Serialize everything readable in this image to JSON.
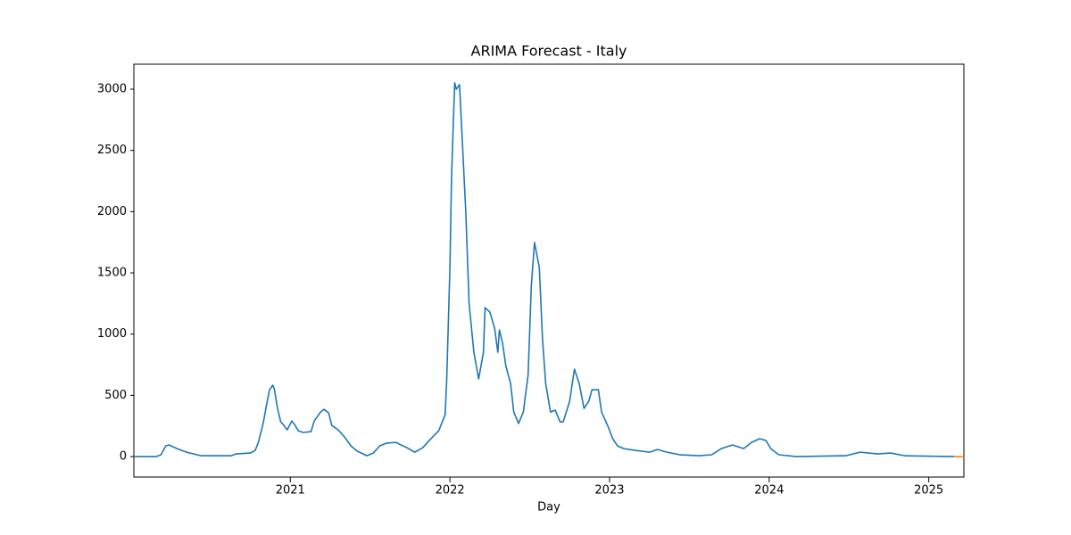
{
  "chart_data": {
    "type": "line",
    "title": "ARIMA Forecast - Italy",
    "x_label": "Day",
    "xlim": [
      2020.02,
      2025.22
    ],
    "xticks": [
      2021,
      2022,
      2023,
      2024,
      2025
    ],
    "ylim": [
      -167,
      3204
    ],
    "yticks": [
      0,
      500,
      1000,
      1500,
      2000,
      2500,
      3000
    ],
    "grid": false,
    "series": [
      {
        "color": "#1f77b4",
        "x": [
          2020.02,
          2020.16,
          2020.19,
          2020.22,
          2020.24,
          2020.29,
          2020.35,
          2020.44,
          2020.63,
          2020.66,
          2020.75,
          2020.78,
          2020.8,
          2020.83,
          2020.85,
          2020.87,
          2020.89,
          2020.9,
          2020.92,
          2020.94,
          2020.96,
          2020.98,
          2021.01,
          2021.03,
          2021.05,
          2021.08,
          2021.13,
          2021.15,
          2021.19,
          2021.21,
          2021.24,
          2021.26,
          2021.3,
          2021.34,
          2021.38,
          2021.42,
          2021.48,
          2021.52,
          2021.56,
          2021.6,
          2021.66,
          2021.73,
          2021.78,
          2021.83,
          2021.87,
          2021.93,
          2021.97,
          2021.98,
          2022.0,
          2022.01,
          2022.02,
          2022.03,
          2022.04,
          2022.06,
          2022.07,
          2022.1,
          2022.12,
          2022.15,
          2022.18,
          2022.21,
          2022.22,
          2022.25,
          2022.28,
          2022.3,
          2022.31,
          2022.33,
          2022.35,
          2022.38,
          2022.4,
          2022.43,
          2022.46,
          2022.49,
          2022.51,
          2022.53,
          2022.56,
          2022.58,
          2022.6,
          2022.63,
          2022.66,
          2022.69,
          2022.71,
          2022.75,
          2022.78,
          2022.81,
          2022.84,
          2022.87,
          2022.89,
          2022.93,
          2022.95,
          2022.97,
          2022.99,
          2023.02,
          2023.05,
          2023.09,
          2023.16,
          2023.25,
          2023.3,
          2023.36,
          2023.44,
          2023.56,
          2023.64,
          2023.7,
          2023.77,
          2023.84,
          2023.89,
          2023.94,
          2023.98,
          2024.01,
          2024.06,
          2024.17,
          2024.48,
          2024.57,
          2024.68,
          2024.76,
          2024.85,
          2025.16
        ],
        "values": [
          0,
          0,
          15,
          87,
          95,
          65,
          36,
          7,
          7,
          22,
          29,
          50,
          116,
          270,
          415,
          546,
          583,
          553,
          393,
          284,
          255,
          218,
          291,
          255,
          211,
          197,
          204,
          291,
          364,
          386,
          357,
          255,
          218,
          160,
          87,
          44,
          7,
          29,
          87,
          109,
          116,
          73,
          36,
          73,
          131,
          211,
          342,
          634,
          1544,
          2272,
          2673,
          3052,
          3000,
          3037,
          2782,
          1981,
          1253,
          852,
          634,
          852,
          1216,
          1180,
          1049,
          852,
          1034,
          925,
          743,
          597,
          364,
          270,
          364,
          670,
          1398,
          1748,
          1544,
          961,
          597,
          364,
          379,
          284,
          284,
          452,
          714,
          597,
          393,
          452,
          546,
          546,
          364,
          306,
          248,
          146,
          87,
          65,
          51,
          36,
          58,
          36,
          15,
          7,
          15,
          65,
          95,
          65,
          116,
          146,
          131,
          65,
          15,
          0,
          7,
          36,
          22,
          29,
          7,
          0
        ]
      },
      {
        "color": "#ff7f0e",
        "x": [
          2025.16,
          2025.22
        ],
        "values": [
          0,
          0
        ]
      }
    ]
  }
}
